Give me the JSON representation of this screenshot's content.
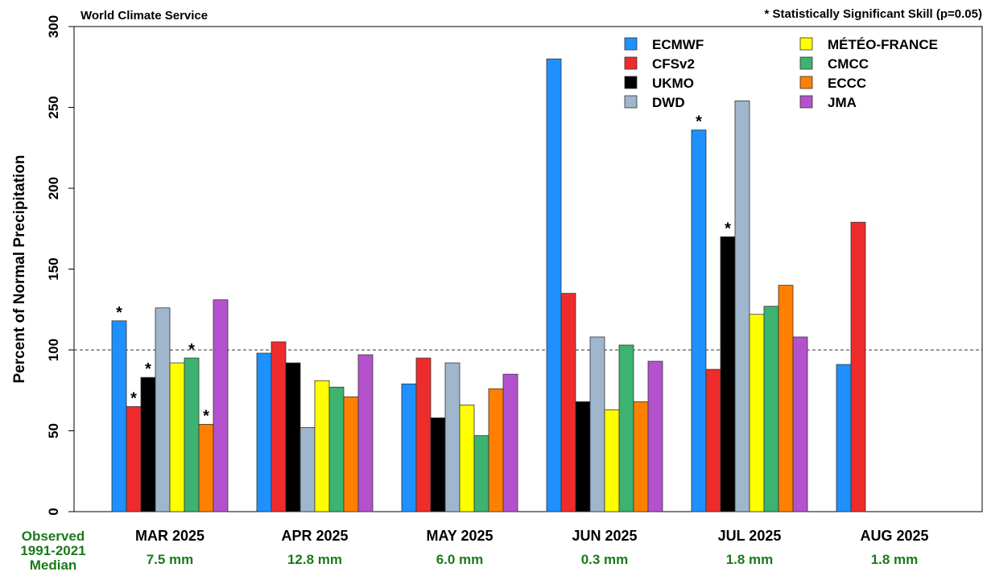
{
  "header": {
    "source": "World Climate Service",
    "significance_note": "* Statistically Significant Skill (p=0.05)"
  },
  "footer": {
    "observed_label": [
      "Observed",
      "1991-2021",
      "Median"
    ],
    "observed_color": "#1a7a1a",
    "medians": [
      "7.5 mm",
      "12.8 mm",
      "6.0 mm",
      "0.3 mm",
      "1.8 mm",
      "1.8 mm"
    ]
  },
  "chart_data": {
    "type": "bar",
    "ylabel": "Percent of Normal Precipitation",
    "xlabel": "",
    "ylim": [
      0,
      300
    ],
    "yticks": [
      "0",
      "50",
      "100",
      "150",
      "200",
      "250",
      "300"
    ],
    "reference_line": 100,
    "grid": false,
    "legend_placement": "top-right",
    "categories": [
      "MAR 2025",
      "APR 2025",
      "MAY 2025",
      "JUN 2025",
      "JUL 2025",
      "AUG 2025"
    ],
    "series": [
      {
        "name": "ECMWF",
        "color": "#1e90ff",
        "values": [
          118,
          98,
          79,
          280,
          236,
          91
        ],
        "significant": [
          true,
          false,
          false,
          false,
          true,
          false
        ]
      },
      {
        "name": "CFSv2",
        "color": "#ee2c2c",
        "values": [
          65,
          105,
          95,
          135,
          88,
          179
        ],
        "significant": [
          true,
          false,
          false,
          false,
          false,
          false
        ]
      },
      {
        "name": "UKMO",
        "color": "#000000",
        "values": [
          83,
          92,
          58,
          68,
          170,
          null
        ],
        "significant": [
          true,
          false,
          false,
          false,
          true,
          false
        ]
      },
      {
        "name": "DWD",
        "color": "#9fb6cd",
        "values": [
          126,
          52,
          92,
          108,
          254,
          null
        ],
        "significant": [
          false,
          false,
          false,
          false,
          false,
          false
        ]
      },
      {
        "name": "MÉTÉO-FRANCE",
        "color": "#ffff00",
        "values": [
          92,
          81,
          66,
          63,
          122,
          null
        ],
        "significant": [
          false,
          false,
          false,
          false,
          false,
          false
        ]
      },
      {
        "name": "CMCC",
        "color": "#3cb371",
        "values": [
          95,
          77,
          47,
          103,
          127,
          null
        ],
        "significant": [
          true,
          false,
          false,
          false,
          false,
          false
        ]
      },
      {
        "name": "ECCC",
        "color": "#ff8000",
        "values": [
          54,
          71,
          76,
          68,
          140,
          null
        ],
        "significant": [
          true,
          false,
          false,
          false,
          false,
          false
        ]
      },
      {
        "name": "JMA",
        "color": "#b452cd",
        "values": [
          131,
          97,
          85,
          93,
          108,
          null
        ],
        "significant": [
          false,
          false,
          false,
          false,
          false,
          false
        ]
      }
    ]
  }
}
